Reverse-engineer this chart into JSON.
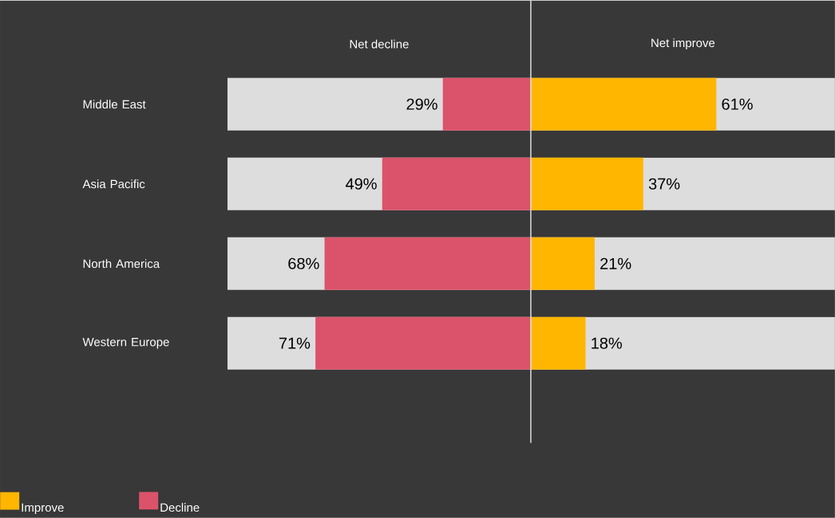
{
  "chart_data": [
    {
      "type": "bar",
      "orientation": "horizontal",
      "title": "Net decline",
      "categories": [
        "Middle East",
        "Asia Pacific",
        "North America",
        "Western Europe"
      ],
      "series": [
        {
          "name": "Decline",
          "color": "#db536a",
          "values": [
            29,
            49,
            68,
            71
          ],
          "value_labels": [
            "29%",
            "49%",
            "68%",
            "71%"
          ]
        }
      ],
      "xlim": [
        100,
        0
      ],
      "tick_labels": "y",
      "legend": "bottom left"
    },
    {
      "type": "bar",
      "orientation": "horizontal",
      "title": "Net improve",
      "categories": [
        null,
        null,
        null,
        null
      ],
      "series": [
        {
          "name": "Improve",
          "color": "#ffb600",
          "values": [
            61,
            37,
            21,
            18
          ],
          "value_labels": [
            "61%",
            "37%",
            "21%",
            "18%"
          ]
        }
      ],
      "xlim": [
        0,
        100
      ],
      "tick_labels": "y",
      "legend": "bottom left",
      "ref_lines": [
        {
          "axis": "x",
          "value": 0,
          "color": "#e0e0e0"
        }
      ]
    }
  ]
}
